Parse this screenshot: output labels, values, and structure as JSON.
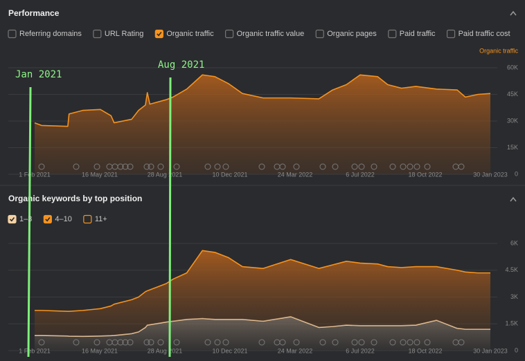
{
  "header": {
    "title": "Performance"
  },
  "metrics": [
    {
      "label": "Referring domains",
      "checked": false
    },
    {
      "label": "URL Rating",
      "checked": false
    },
    {
      "label": "Organic traffic",
      "checked": true
    },
    {
      "label": "Organic traffic value",
      "checked": false
    },
    {
      "label": "Organic pages",
      "checked": false
    },
    {
      "label": "Paid traffic",
      "checked": false
    },
    {
      "label": "Paid traffic cost",
      "checked": false
    }
  ],
  "keywords_header": {
    "title": "Organic keywords by top position"
  },
  "annotations": [
    {
      "label": "Jan 2021"
    },
    {
      "label": "Aug 2021"
    }
  ],
  "chart_data": [
    {
      "type": "area",
      "y_label": "Organic traffic",
      "x": [
        "2021-02-01",
        "2021-02-12",
        "2021-03-26",
        "2021-03-28",
        "2021-04-19",
        "2021-05-17",
        "2021-06-03",
        "2021-06-08",
        "2021-07-06",
        "2021-07-17",
        "2021-07-28",
        "2021-07-31",
        "2021-08-04",
        "2021-08-30",
        "2021-09-10",
        "2021-10-02",
        "2021-10-27",
        "2021-11-16",
        "2021-12-08",
        "2021-12-30",
        "2022-02-01",
        "2022-03-17",
        "2022-05-01",
        "2022-05-23",
        "2022-06-14",
        "2022-07-06",
        "2022-08-03",
        "2022-08-19",
        "2022-09-10",
        "2022-10-03",
        "2022-11-05",
        "2022-12-08",
        "2022-12-21",
        "2023-01-10",
        "2023-01-30"
      ],
      "xlim": [
        "2021-02-01",
        "2023-01-30"
      ],
      "xticks": [
        {
          "value": "2021-02-01",
          "label": "1 Feb 2021"
        },
        {
          "value": "2021-05-16",
          "label": "16 May 2021"
        },
        {
          "value": "2021-08-28",
          "label": "28 Aug 2021"
        },
        {
          "value": "2021-12-10",
          "label": "10 Dec 2021"
        },
        {
          "value": "2022-03-24",
          "label": "24 Mar 2022"
        },
        {
          "value": "2022-07-06",
          "label": "6 Jul 2022"
        },
        {
          "value": "2022-10-18",
          "label": "18 Oct 2022"
        },
        {
          "value": "2023-01-30",
          "label": "30 Jan 2023"
        }
      ],
      "series": [
        {
          "color": "#f7931e",
          "values": [
            29000,
            27500,
            27000,
            34000,
            36000,
            36500,
            33000,
            29000,
            31000,
            36000,
            39000,
            46000,
            39500,
            42000,
            43500,
            48000,
            56000,
            55000,
            51000,
            45500,
            43000,
            43000,
            42500,
            47500,
            50500,
            56000,
            55000,
            50500,
            48500,
            49500,
            48000,
            47500,
            43500,
            45000,
            45500
          ]
        }
      ],
      "ylim": [
        0,
        60000
      ],
      "yticks": [
        0,
        {
          "value": 15000,
          "label": "15K"
        },
        {
          "value": 30000,
          "label": "30K"
        },
        {
          "value": 45000,
          "label": "45K"
        },
        {
          "value": 60000,
          "label": "60K"
        }
      ],
      "grid": true
    },
    {
      "type": "stacked_area",
      "x": [
        "2021-02-01",
        "2021-02-12",
        "2021-03-26",
        "2021-03-28",
        "2021-04-19",
        "2021-05-17",
        "2021-06-03",
        "2021-06-08",
        "2021-07-06",
        "2021-07-17",
        "2021-07-28",
        "2021-07-31",
        "2021-08-04",
        "2021-08-30",
        "2021-09-10",
        "2021-10-02",
        "2021-10-27",
        "2021-11-16",
        "2021-12-08",
        "2021-12-30",
        "2022-02-01",
        "2022-03-17",
        "2022-05-01",
        "2022-05-23",
        "2022-06-14",
        "2022-07-06",
        "2022-08-03",
        "2022-08-19",
        "2022-09-10",
        "2022-10-03",
        "2022-11-05",
        "2022-12-08",
        "2022-12-21",
        "2023-01-10",
        "2023-01-30"
      ],
      "xlim": [
        "2021-02-01",
        "2023-01-30"
      ],
      "xticks": [
        {
          "value": "2021-02-01",
          "label": "1 Feb 2021"
        },
        {
          "value": "2021-05-16",
          "label": "16 May 2021"
        },
        {
          "value": "2021-08-28",
          "label": "28 Aug 2021"
        },
        {
          "value": "2021-12-10",
          "label": "10 Dec 2021"
        },
        {
          "value": "2022-03-24",
          "label": "24 Mar 2022"
        },
        {
          "value": "2022-07-06",
          "label": "6 Jul 2022"
        },
        {
          "value": "2022-10-18",
          "label": "18 Oct 2022"
        },
        {
          "value": "2023-01-30",
          "label": "30 Jan 2023"
        }
      ],
      "series": [
        {
          "name": "1–3",
          "color": "#f6d2a4",
          "checked": true,
          "values": [
            850,
            850,
            820,
            810,
            800,
            820,
            840,
            850,
            950,
            1050,
            1300,
            1430,
            1450,
            1600,
            1650,
            1750,
            1800,
            1750,
            1750,
            1750,
            1650,
            1900,
            1300,
            1350,
            1430,
            1400,
            1400,
            1400,
            1400,
            1430,
            1700,
            1250,
            1200,
            1200,
            1200
          ]
        },
        {
          "name": "4–10",
          "color": "#f7931e",
          "checked": true,
          "values": [
            1400,
            1400,
            1380,
            1390,
            1450,
            1530,
            1660,
            1750,
            1900,
            1950,
            2000,
            1920,
            1950,
            2150,
            2350,
            2600,
            3800,
            3750,
            3450,
            2950,
            2950,
            3200,
            3300,
            3450,
            3570,
            3500,
            3450,
            3300,
            3250,
            3270,
            3000,
            3250,
            3200,
            3150,
            3150
          ]
        },
        {
          "name": "11+",
          "color": "#f7931e",
          "checked": false
        }
      ],
      "ylim": [
        0,
        6000
      ],
      "yticks": [
        0,
        {
          "value": 1500,
          "label": "1.5K"
        },
        {
          "value": 3000,
          "label": "3K"
        },
        {
          "value": 4500,
          "label": "4.5K"
        },
        {
          "value": 6000,
          "label": "6K"
        }
      ],
      "grid": true
    }
  ]
}
